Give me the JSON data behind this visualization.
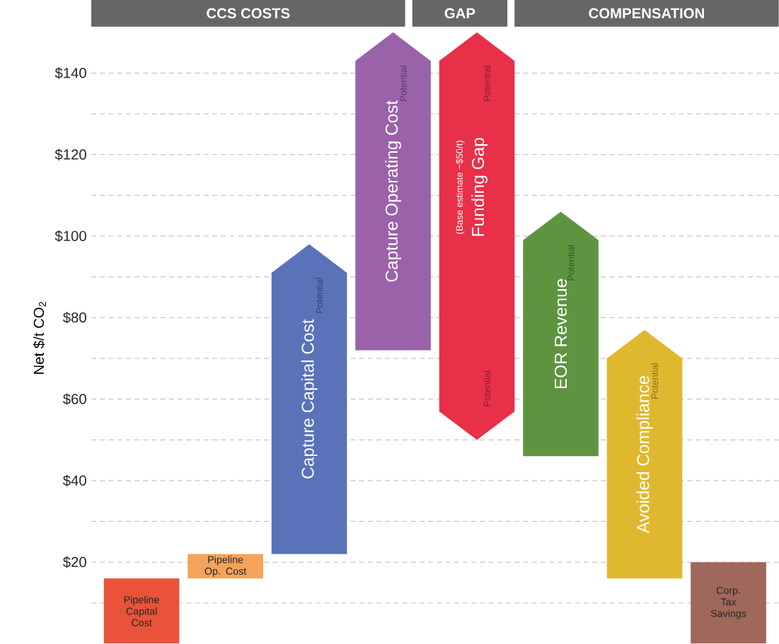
{
  "chart_data": {
    "type": "bar",
    "ylabel": "Net $/t CO$_{2}$",
    "categories": [
      "Pipeline Capital Cost",
      "Pipeline Op. Cost",
      "Capture Capital Cost",
      "Capture Operating Cost",
      "Funding Gap",
      "EOR Revenue",
      "Avoided Compliance",
      "Corp. Tax Savings"
    ],
    "base": [
      0,
      16,
      22,
      72,
      50,
      46,
      16,
      0
    ],
    "values": [
      16,
      6,
      76,
      78,
      100,
      60,
      61,
      20
    ],
    "colors": [
      "#e8533a",
      "#f5a35a",
      "#5a72b8",
      "#9a62a8",
      "#e83048",
      "#5e9440",
      "#e0b830",
      "#a0685a"
    ],
    "ylim": [
      0,
      150
    ],
    "yticks": [
      {
        "value": 10,
        "label": null
      },
      {
        "value": 20,
        "label": "$20"
      },
      {
        "value": 30,
        "label": null
      },
      {
        "value": 40,
        "label": "$40"
      },
      {
        "value": 50,
        "label": null
      },
      {
        "value": 60,
        "label": "$60"
      },
      {
        "value": 70,
        "label": null
      },
      {
        "value": 80,
        "label": "$80"
      },
      {
        "value": 90,
        "label": null
      },
      {
        "value": 100,
        "label": "$100"
      },
      {
        "value": 110,
        "label": null
      },
      {
        "value": 120,
        "label": "$120"
      },
      {
        "value": 130,
        "label": null
      },
      {
        "value": 140,
        "label": "$140"
      }
    ],
    "grid": "y",
    "tick_labels": "y",
    "annotations": [
      "CCS COSTS",
      "GAP",
      "COMPENSATION",
      "Potential",
      "Potential",
      "Potential",
      "(Base estimate ~$50/t)",
      "Potential",
      "Potential",
      "Potential"
    ]
  }
}
